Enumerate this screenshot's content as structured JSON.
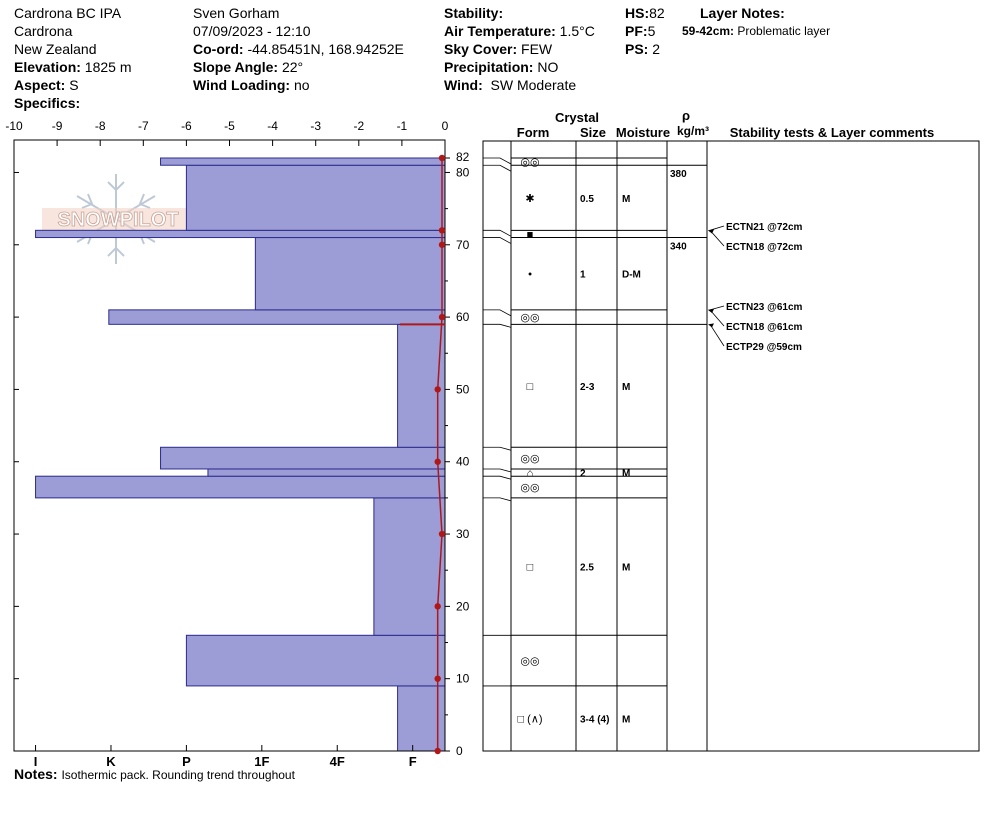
{
  "header": {
    "location": "Cardrona BC IPA",
    "area": "Cardrona",
    "country": "New Zealand",
    "elevation_label": "Elevation:",
    "elevation": "1825 m",
    "aspect_label": "Aspect:",
    "aspect": "S",
    "specifics_label": "Specifics:",
    "observer": "Sven Gorham",
    "datetime": "07/09/2023 - 12:10",
    "coord_label": "Co-ord:",
    "coord": "-44.85451N, 168.94252E",
    "slope_label": "Slope Angle:",
    "slope": "22°",
    "wind_loading_label": "Wind Loading:",
    "wind_loading": "no",
    "stability_label": "Stability:",
    "air_temp_label": "Air Temperature:",
    "air_temp": "1.5°C",
    "sky_label": "Sky Cover:",
    "sky": "FEW",
    "precip_label": "Precipitation:",
    "precip": "NO",
    "wind_label": "Wind:",
    "wind": "SW Moderate",
    "hs_label": "HS:",
    "hs": "82",
    "pf_label": "PF:",
    "pf": "5",
    "ps_label": "PS:",
    "ps": "2",
    "layer_notes_label": "Layer Notes:",
    "layer_note_range": "59-42cm:",
    "layer_note_text": "Problematic layer"
  },
  "columns": {
    "crystal": "Crystal",
    "form": "Form",
    "size": "Size",
    "moisture": "Moisture",
    "rho": "ρ",
    "density_unit": "kg/m³",
    "stability": "Stability tests & Layer comments"
  },
  "notes": {
    "label": "Notes:",
    "text": "Isothermic pack. Rounding trend throughout"
  },
  "logo_text": "SNOWPILOT",
  "colors": {
    "hardness_fill": "#9c9cd6",
    "hardness_stroke": "#2b2b8c",
    "temperature": "#b01818"
  },
  "chart_data": {
    "type": "bar",
    "temp_axis": {
      "ticks": [
        -10,
        -9,
        -8,
        -7,
        -6,
        -5,
        -4,
        -3,
        -2,
        -1,
        0
      ],
      "range": [
        -10,
        0
      ],
      "tick_labels": [
        "-10",
        "-9",
        "-8",
        "-7",
        "-6",
        "-5",
        "-4",
        "-3",
        "-2",
        "-1",
        "0"
      ]
    },
    "height_axis": {
      "range": [
        0,
        82
      ],
      "labels": [
        0,
        10,
        20,
        30,
        40,
        50,
        60,
        70,
        80,
        82
      ]
    },
    "hardness_axis": {
      "labels": [
        "I",
        "K",
        "P",
        "1F",
        "4F",
        "F"
      ],
      "values": [
        9.5,
        7.75,
        6.0,
        4.25,
        2.5,
        0.75
      ]
    },
    "hardness_layers": [
      {
        "bottom": 0,
        "top": 9,
        "hardness": 1.1
      },
      {
        "bottom": 9,
        "top": 16,
        "hardness": 6.0
      },
      {
        "bottom": 16,
        "top": 35,
        "hardness": 1.65
      },
      {
        "bottom": 35,
        "top": 38,
        "hardness": 9.5
      },
      {
        "bottom": 38,
        "top": 39,
        "hardness": 5.5
      },
      {
        "bottom": 39,
        "top": 42,
        "hardness": 6.6
      },
      {
        "bottom": 42,
        "top": 59,
        "hardness": 1.1
      },
      {
        "bottom": 59,
        "top": 61,
        "hardness": 7.8
      },
      {
        "bottom": 61,
        "top": 71,
        "hardness": 4.4
      },
      {
        "bottom": 71,
        "top": 72,
        "hardness": 9.5
      },
      {
        "bottom": 72,
        "top": 81,
        "hardness": 6.0
      },
      {
        "bottom": 81,
        "top": 82,
        "hardness": 6.6
      }
    ],
    "temperature_profile": [
      {
        "depth": 82,
        "temp": 0.0
      },
      {
        "depth": 72,
        "temp": 0.0
      },
      {
        "depth": 70,
        "temp": 0.0
      },
      {
        "depth": 60,
        "temp": 0.0
      },
      {
        "depth": 50,
        "temp": -0.1
      },
      {
        "depth": 40,
        "temp": -0.1
      },
      {
        "depth": 30,
        "temp": 0.0
      },
      {
        "depth": 20,
        "temp": -0.1
      },
      {
        "depth": 10,
        "temp": -0.1
      },
      {
        "depth": 0,
        "temp": -0.1
      }
    ],
    "problem_layer": {
      "depth": 59
    },
    "layers": [
      {
        "bottom": 0,
        "top": 9,
        "form": "□ (∧)",
        "size": "3-4 (4)",
        "moisture": "M"
      },
      {
        "bottom": 9,
        "top": 16,
        "form": "◎◎",
        "size": "",
        "moisture": ""
      },
      {
        "bottom": 16,
        "top": 35,
        "form": "□",
        "size": "2.5",
        "moisture": "M"
      },
      {
        "bottom": 35,
        "top": 38,
        "form": "◎◎",
        "size": "",
        "moisture": ""
      },
      {
        "bottom": 38,
        "top": 39,
        "form": "⌂",
        "size": "2",
        "moisture": "M"
      },
      {
        "bottom": 39,
        "top": 42,
        "form": "◎◎",
        "size": "",
        "moisture": ""
      },
      {
        "bottom": 42,
        "top": 59,
        "form": "□",
        "size": "2-3",
        "moisture": "M"
      },
      {
        "bottom": 59,
        "top": 61,
        "form": "◎◎",
        "size": "",
        "moisture": ""
      },
      {
        "bottom": 61,
        "top": 71,
        "form": "•",
        "size": "1",
        "moisture": "D-M"
      },
      {
        "bottom": 71,
        "top": 72,
        "form": "■",
        "size": "",
        "moisture": ""
      },
      {
        "bottom": 72,
        "top": 81,
        "form": "✱",
        "size": "0.5",
        "moisture": "M"
      },
      {
        "bottom": 81,
        "top": 82,
        "form": "◎◎",
        "size": "",
        "moisture": ""
      }
    ],
    "density": [
      {
        "label": "380",
        "bottom": 71,
        "top": 81
      },
      {
        "label": "340",
        "bottom": 59,
        "top": 71
      }
    ],
    "stability_tests": [
      {
        "label": "ECTN21 @72cm",
        "depth": 72
      },
      {
        "label": "ECTN18 @72cm",
        "depth": 72
      },
      {
        "label": "ECTN23 @61cm",
        "depth": 61
      },
      {
        "label": "ECTN18 @61cm",
        "depth": 61
      },
      {
        "label": "ECTP29 @59cm",
        "depth": 59
      }
    ]
  }
}
